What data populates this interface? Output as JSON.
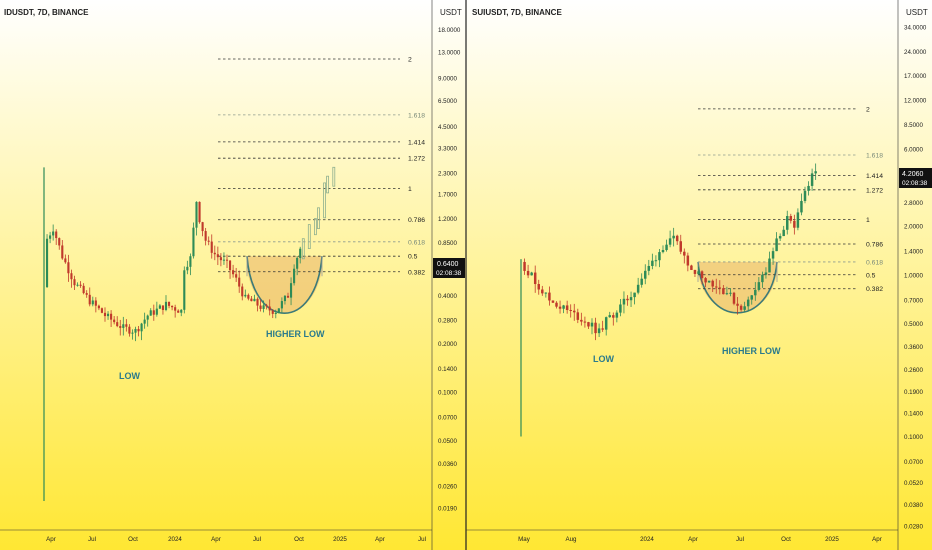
{
  "colors": {
    "bg_top": "#FFFFFF",
    "bg_bottom": "#FFE733",
    "up": "#2E8B57",
    "down": "#C0392B",
    "axis_text": "#222222",
    "annotation": "#2A7A8C",
    "zone_fill": "#E9B56A",
    "curve": "#3C7A78",
    "price_tag_bg": "#111111",
    "price_tag_text": "#FFFFFF"
  },
  "chart_data": [
    {
      "type": "candlestick",
      "title": "IDUSDT, 7D, BINANCE",
      "price_unit": "USDT",
      "y_scale": "log",
      "y_ticks": [
        "18.0000",
        "13.0000",
        "9.0000",
        "6.5000",
        "4.5000",
        "3.3000",
        "2.3000",
        "1.7000",
        "1.2000",
        "0.8500",
        "0.6000",
        "0.4000",
        "0.2800",
        "0.2000",
        "0.1400",
        "0.1000",
        "0.0700",
        "0.0500",
        "0.0360",
        "0.0260",
        "0.0190"
      ],
      "x_ticks": [
        "Apr",
        "Jul",
        "Oct",
        "2024",
        "Apr",
        "Jul",
        "Oct",
        "2025",
        "Apr",
        "Jul"
      ],
      "last_price": "0.6400",
      "countdown": "02:08:38",
      "fib_levels": [
        {
          "label": "2",
          "value": 11.8
        },
        {
          "label": "1.618",
          "value": 5.3
        },
        {
          "label": "1.414",
          "value": 3.6
        },
        {
          "label": "1.272",
          "value": 2.85
        },
        {
          "label": "1",
          "value": 1.85
        },
        {
          "label": "0.786",
          "value": 1.18
        },
        {
          "label": "0.618",
          "value": 0.86
        },
        {
          "label": "0.5",
          "value": 0.7
        },
        {
          "label": "0.382",
          "value": 0.56
        }
      ],
      "annotations": [
        "LOW",
        "HIGHER LOW"
      ],
      "anchors": [
        {
          "t": 0,
          "p": 0.45
        },
        {
          "t": 1,
          "p": 0.9
        },
        {
          "t": 3,
          "p": 1.05
        },
        {
          "t": 6,
          "p": 0.7
        },
        {
          "t": 10,
          "p": 0.48
        },
        {
          "t": 15,
          "p": 0.37
        },
        {
          "t": 20,
          "p": 0.3
        },
        {
          "t": 26,
          "p": 0.25
        },
        {
          "t": 30,
          "p": 0.24
        },
        {
          "t": 34,
          "p": 0.3
        },
        {
          "t": 40,
          "p": 0.35
        },
        {
          "t": 45,
          "p": 0.32
        },
        {
          "t": 46,
          "p": 0.6
        },
        {
          "t": 48,
          "p": 0.68
        },
        {
          "t": 50,
          "p": 1.55
        },
        {
          "t": 51,
          "p": 1.2
        },
        {
          "t": 53,
          "p": 0.88
        },
        {
          "t": 56,
          "p": 0.72
        },
        {
          "t": 60,
          "p": 0.62
        },
        {
          "t": 63,
          "p": 0.5
        },
        {
          "t": 66,
          "p": 0.38
        },
        {
          "t": 69,
          "p": 0.36
        },
        {
          "t": 72,
          "p": 0.33
        },
        {
          "t": 76,
          "p": 0.32
        },
        {
          "t": 80,
          "p": 0.4
        },
        {
          "t": 82,
          "p": 0.62
        },
        {
          "t": 84,
          "p": 0.78
        }
      ],
      "projection": [
        {
          "t": 85,
          "p": 0.9
        },
        {
          "t": 87,
          "p": 1.1
        },
        {
          "t": 89,
          "p": 1.2
        },
        {
          "t": 90,
          "p": 1.4
        },
        {
          "t": 92,
          "p": 2.0
        },
        {
          "t": 93,
          "p": 2.2
        },
        {
          "t": 95,
          "p": 2.5
        }
      ]
    },
    {
      "type": "candlestick",
      "title": "SUIUSDT, 7D, BINANCE",
      "price_unit": "USDT",
      "y_scale": "log",
      "y_ticks": [
        "34.0000",
        "24.0000",
        "17.0000",
        "12.0000",
        "8.5000",
        "6.0000",
        "4.2000",
        "2.8000",
        "2.0000",
        "1.4000",
        "1.0000",
        "0.7000",
        "0.5000",
        "0.3600",
        "0.2600",
        "0.1900",
        "0.1400",
        "0.1000",
        "0.0700",
        "0.0520",
        "0.0380",
        "0.0280"
      ],
      "x_ticks": [
        "May",
        "Aug",
        "2024",
        "Apr",
        "Jul",
        "Oct",
        "2025",
        "Apr"
      ],
      "last_price": "4.2060",
      "countdown": "02:08:38",
      "fib_levels": [
        {
          "label": "2",
          "value": 10.6
        },
        {
          "label": "1.618",
          "value": 5.5
        },
        {
          "label": "1.414",
          "value": 4.1
        },
        {
          "label": "1.272",
          "value": 3.35
        },
        {
          "label": "1",
          "value": 2.2
        },
        {
          "label": "0.786",
          "value": 1.55
        },
        {
          "label": "0.618",
          "value": 1.2
        },
        {
          "label": "0.5",
          "value": 1.0
        },
        {
          "label": "0.382",
          "value": 0.82
        }
      ],
      "annotations": [
        "LOW",
        "HIGHER LOW"
      ],
      "anchors": [
        {
          "t": 0,
          "p": 1.2
        },
        {
          "t": 2,
          "p": 1.05
        },
        {
          "t": 5,
          "p": 0.85
        },
        {
          "t": 8,
          "p": 0.7
        },
        {
          "t": 12,
          "p": 0.62
        },
        {
          "t": 16,
          "p": 0.55
        },
        {
          "t": 20,
          "p": 0.48
        },
        {
          "t": 22,
          "p": 0.44
        },
        {
          "t": 24,
          "p": 0.52
        },
        {
          "t": 27,
          "p": 0.6
        },
        {
          "t": 31,
          "p": 0.75
        },
        {
          "t": 34,
          "p": 0.95
        },
        {
          "t": 37,
          "p": 1.2
        },
        {
          "t": 40,
          "p": 1.5
        },
        {
          "t": 43,
          "p": 1.65
        },
        {
          "t": 46,
          "p": 1.3
        },
        {
          "t": 49,
          "p": 1.05
        },
        {
          "t": 52,
          "p": 0.95
        },
        {
          "t": 55,
          "p": 0.85
        },
        {
          "t": 58,
          "p": 0.78
        },
        {
          "t": 61,
          "p": 0.65
        },
        {
          "t": 63,
          "p": 0.62
        },
        {
          "t": 66,
          "p": 0.85
        },
        {
          "t": 69,
          "p": 1.05
        },
        {
          "t": 72,
          "p": 1.6
        },
        {
          "t": 75,
          "p": 2.2
        },
        {
          "t": 77,
          "p": 1.9
        },
        {
          "t": 79,
          "p": 3.0
        },
        {
          "t": 81,
          "p": 3.6
        },
        {
          "t": 82,
          "p": 4.0
        },
        {
          "t": 83,
          "p": 4.2
        }
      ],
      "projection": []
    }
  ]
}
